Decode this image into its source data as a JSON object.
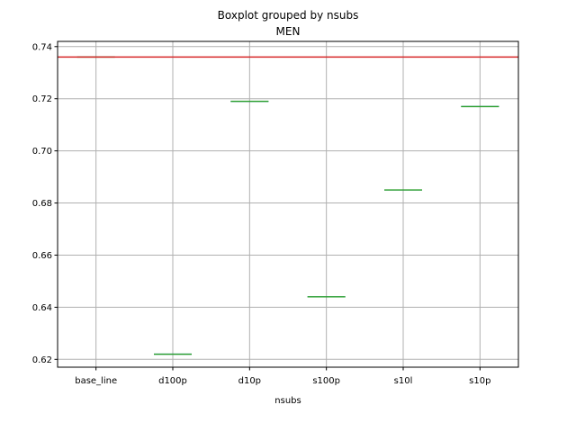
{
  "chart_data": {
    "type": "box",
    "suptitle": "Boxplot grouped by nsubs",
    "title": "MEN",
    "xlabel": "nsubs",
    "ylabel": "",
    "categories": [
      "base_line",
      "d100p",
      "d10p",
      "s100p",
      "s10l",
      "s10p"
    ],
    "values": [
      0.736,
      0.622,
      0.719,
      0.644,
      0.685,
      0.717
    ],
    "ylim": [
      0.617,
      0.742
    ],
    "yticks": [
      "0.62",
      "0.64",
      "0.66",
      "0.68",
      "0.70",
      "0.72",
      "0.74"
    ],
    "reference_line": {
      "value": 0.736,
      "color": "#d62728"
    },
    "grid": true,
    "colors": {
      "box": "#1f77b4",
      "median": "#2ca02c",
      "grid": "#b0b0b0",
      "axis": "#000000"
    }
  }
}
